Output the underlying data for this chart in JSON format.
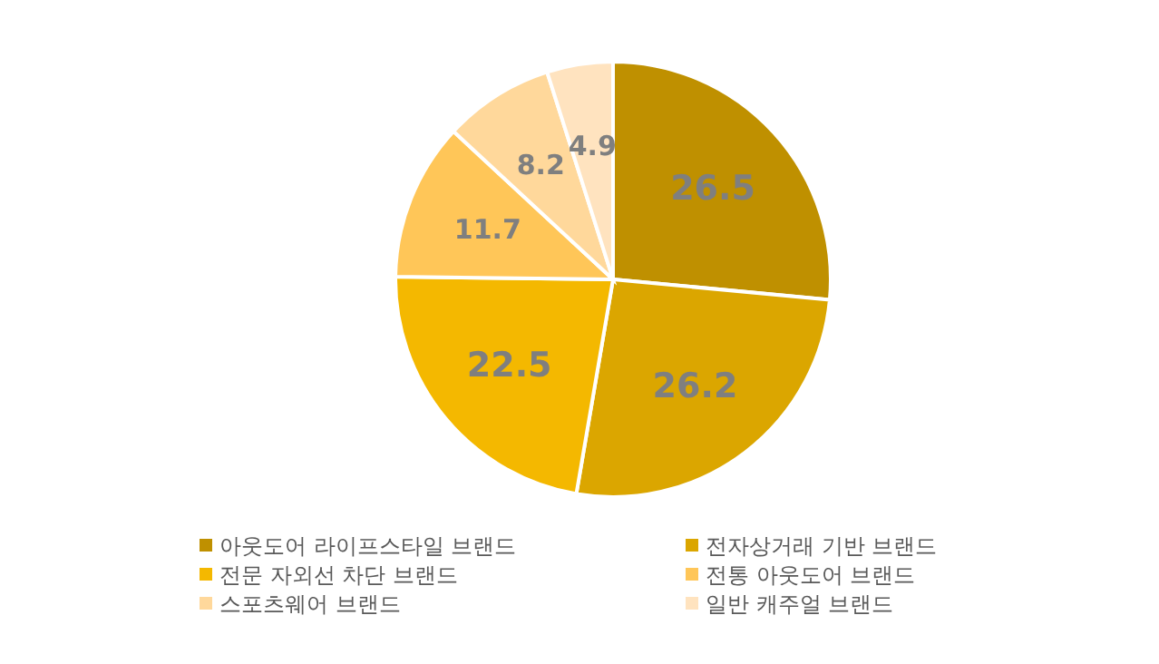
{
  "chart_data": {
    "type": "pie",
    "categories": [
      "아웃도어 라이프스타일 브랜드",
      "전자상거래 기반 브랜드",
      "전문 자외선 차단 브랜드",
      "전통 아웃도어 브랜드",
      "스포츠웨어 브랜드",
      "일반 캐주얼 브랜드"
    ],
    "values": [
      26.5,
      26.2,
      22.5,
      11.7,
      8.2,
      4.9
    ],
    "colors": [
      "#bf9000",
      "#dba600",
      "#f4b800",
      "#ffc658",
      "#ffd89b",
      "#ffe3bf"
    ],
    "data_labels": true,
    "legend": "bottom"
  }
}
